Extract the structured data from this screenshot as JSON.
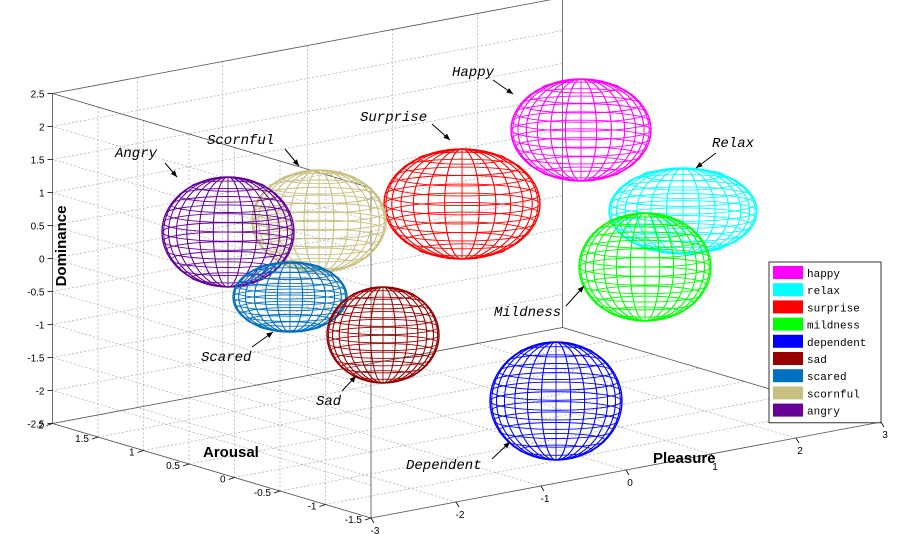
{
  "chart_data": {
    "type": "scatter3d",
    "title": "",
    "xlabel": "Pleasure",
    "ylabel": "Arousal",
    "zlabel": "Dominance",
    "xlim": [
      -3,
      3
    ],
    "ylim": [
      -1.5,
      2
    ],
    "zlim": [
      -2.5,
      2.5
    ],
    "x_ticks": [
      "-3",
      "-2",
      "-1",
      "0",
      "1",
      "2",
      "3"
    ],
    "y_ticks": [
      "-1.5",
      "-1",
      "-0.5",
      "0",
      "0.5",
      "1",
      "1.5",
      "2"
    ],
    "z_ticks": [
      "-2.5",
      "-2",
      "-1.5",
      "-1",
      "-0.5",
      "0",
      "0.5",
      "1",
      "1.5",
      "2",
      "2.5"
    ],
    "grid": true,
    "legend_position": "right",
    "series": [
      {
        "name": "happy",
        "label": "Happy",
        "color": "#ff00ff",
        "pleasure": 2.1,
        "arousal": 1.5,
        "dominance": 1.3
      },
      {
        "name": "relax",
        "label": "Relax",
        "color": "#00ffff",
        "pleasure": 2.7,
        "arousal": 0.6,
        "dominance": 1.0
      },
      {
        "name": "surprise",
        "label": "Surprise",
        "color": "#ff0000",
        "pleasure": 1.2,
        "arousal": 1.9,
        "dominance": 0.3
      },
      {
        "name": "mildness",
        "label": "Mildness",
        "color": "#00ff00",
        "pleasure": 2.6,
        "arousal": 0.3,
        "dominance": 0.0
      },
      {
        "name": "dependent",
        "label": "Dependent",
        "color": "#0000ff",
        "pleasure": 2.2,
        "arousal": -0.3,
        "dominance": -0.8
      },
      {
        "name": "sad",
        "label": "Sad",
        "color": "#990000",
        "pleasure": 0.5,
        "arousal": 0.1,
        "dominance": -1.6
      },
      {
        "name": "scared",
        "label": "Scared",
        "color": "#0070c0",
        "pleasure": -0.6,
        "arousal": 1.0,
        "dominance": -1.2
      },
      {
        "name": "scornful",
        "label": "Scornful",
        "color": "#c8c080",
        "pleasure": -0.3,
        "arousal": 1.3,
        "dominance": 0.2
      },
      {
        "name": "angry",
        "label": "Angry",
        "color": "#660099",
        "pleasure": -1.2,
        "arousal": 1.6,
        "dominance": 0.3
      }
    ]
  }
}
